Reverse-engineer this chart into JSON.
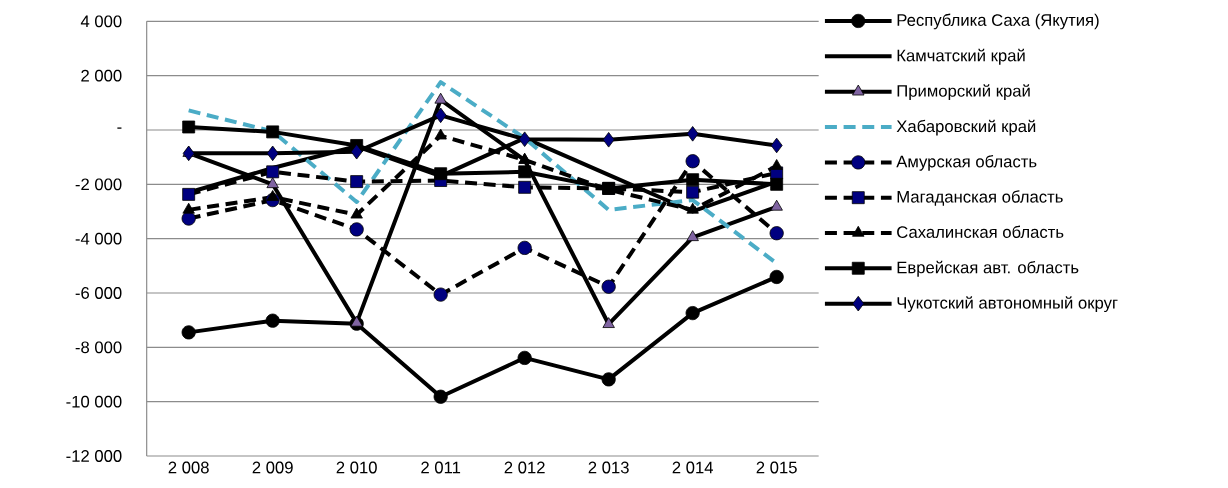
{
  "chart_data": {
    "type": "line",
    "categories": [
      "2 008",
      "2 009",
      "2 010",
      "2 011",
      "2 012",
      "2 013",
      "2 014",
      "2 015"
    ],
    "ylim": [
      -12000,
      4000
    ],
    "yticks": [
      {
        "value": -12000,
        "label": "-12 000"
      },
      {
        "value": -10000,
        "label": "-10 000"
      },
      {
        "value": -8000,
        "label": "-8 000"
      },
      {
        "value": -6000,
        "label": "-6 000"
      },
      {
        "value": -4000,
        "label": "-4 000"
      },
      {
        "value": -2000,
        "label": "-2 000"
      },
      {
        "value": 0,
        "label": "-"
      },
      {
        "value": 2000,
        "label": "2 000"
      },
      {
        "value": 4000,
        "label": "4 000"
      }
    ],
    "grid": "y",
    "legend": "right",
    "series": [
      {
        "name": "Республика Саха (Якутия)",
        "color": "#000000",
        "marker": "circle",
        "line_style": "solid",
        "values": [
          -7450,
          -7020,
          -7130,
          -9820,
          -8390,
          -9180,
          -6740,
          -5410
        ]
      },
      {
        "name": "Камчатский край",
        "color": "#000000",
        "marker": "none",
        "line_style": "solid",
        "values": [
          -2300,
          -1400,
          -600,
          -1700,
          -300,
          -1650,
          -3000,
          -1900
        ]
      },
      {
        "name": "Приморский край",
        "color": "#000000",
        "marker": "triangle",
        "line_style": "solid",
        "values": [
          -850,
          -2000,
          -7100,
          1110,
          -1110,
          -7150,
          -3950,
          -2830
        ]
      },
      {
        "name": "Хабаровский край",
        "color": "#4bacc6",
        "marker": "none",
        "line_style": "dashed",
        "values": [
          720,
          -50,
          -2650,
          1760,
          -300,
          -2940,
          -2580,
          -4910
        ]
      },
      {
        "name": "Амурская область",
        "color": "#000000",
        "marker": "circle",
        "line_style": "dashed",
        "values": [
          -3260,
          -2580,
          -3660,
          -6060,
          -4340,
          -5770,
          -1150,
          -3800
        ]
      },
      {
        "name": "Магаданская область",
        "color": "#000000",
        "marker": "square",
        "line_style": "dashed",
        "values": [
          -2370,
          -1540,
          -1900,
          -1860,
          -2110,
          -2150,
          -2290,
          -1580
        ]
      },
      {
        "name": "Сахалинская область",
        "color": "#000000",
        "marker": "triangle",
        "line_style": "dashed",
        "values": [
          -2940,
          -2470,
          -3120,
          -210,
          -1100,
          -2200,
          -2940,
          -1330
        ]
      },
      {
        "name": "Еврейская авт. область",
        "color": "#000000",
        "marker": "square",
        "line_style": "solid",
        "values": [
          110,
          -70,
          -570,
          -1610,
          -1540,
          -2150,
          -1830,
          -2000
        ]
      },
      {
        "name": "Чукотский автономный округ",
        "color": "#000000",
        "marker": "diamond",
        "line_style": "solid",
        "values": [
          -860,
          -860,
          -800,
          540,
          -340,
          -360,
          -140,
          -570
        ]
      }
    ]
  }
}
